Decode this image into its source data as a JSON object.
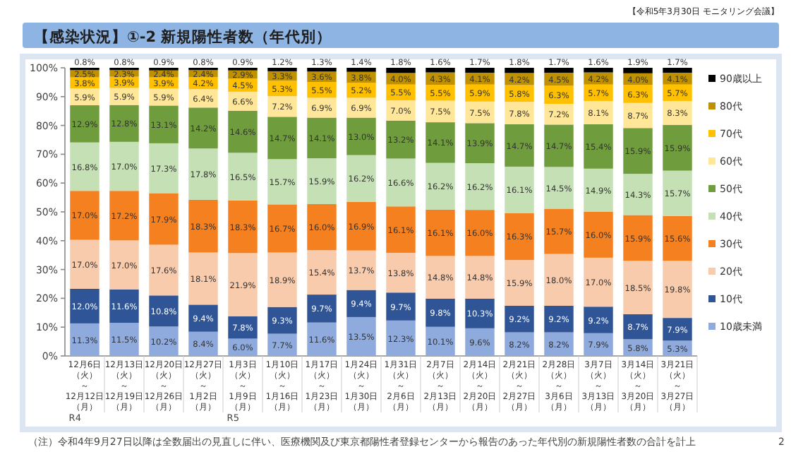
{
  "chart_data": {
    "type": "bar",
    "stacked": true,
    "title": "【感染状況】①-2 新規陽性者数（年代別）",
    "subtitle": "【令和5年3月30日 モニタリング会議】",
    "categories": [
      "12月6日（火）～12月12日（月）",
      "12月13日（火）～12月19日（月）",
      "12月20日（火）～12月26日（月）",
      "12月27日（火）～1月2日（月）",
      "1月3日（火）～1月9日（月）",
      "1月10日（火）～1月16日（月）",
      "1月17日（火）～1月23日（月）",
      "1月24日（火）～1月30日（月）",
      "1月31日（火）～2月6日（月）",
      "2月7日（火）～2月13日（月）",
      "2月14日（火）～2月20日（月）",
      "2月21日（火）～2月27日（月）",
      "2月28日（火）～3月6日（月）",
      "3月7日（火）～3月13日（月）",
      "3月14日（火）～3月20日（月）",
      "3月21日（火）～3月27日（月）"
    ],
    "ylim": [
      0,
      100
    ],
    "yticks": [
      {
        "value": 0,
        "label": "0%"
      },
      {
        "value": 10,
        "label": "10%"
      },
      {
        "value": 20,
        "label": "20%"
      },
      {
        "value": 30,
        "label": "30%"
      },
      {
        "value": 40,
        "label": "40%"
      },
      {
        "value": 50,
        "label": "50%"
      },
      {
        "value": 60,
        "label": "60%"
      },
      {
        "value": 70,
        "label": "70%"
      },
      {
        "value": 80,
        "label": "80%"
      },
      {
        "value": 90,
        "label": "90%"
      },
      {
        "value": 100,
        "label": "100%"
      }
    ],
    "legend": "right",
    "series": [
      {
        "name": "10歳未満",
        "color": "#8faadc",
        "values": [
          11.3,
          11.5,
          10.2,
          8.4,
          6.0,
          7.7,
          11.6,
          13.5,
          12.3,
          10.1,
          9.6,
          8.2,
          8.2,
          7.9,
          5.8,
          5.3
        ],
        "value_labels": [
          "11.3%",
          "11.5%",
          "10.2%",
          "8.4%",
          "6.0%",
          "7.7%",
          "11.6%",
          "13.5%",
          "12.3%",
          "10.1%",
          "9.6%",
          "8.2%",
          "8.2%",
          "7.9%",
          "5.8%",
          "5.3%"
        ]
      },
      {
        "name": "10代",
        "color": "#2f5597",
        "values": [
          12.0,
          11.6,
          10.8,
          9.4,
          7.8,
          9.3,
          9.7,
          9.4,
          9.7,
          9.8,
          10.3,
          9.2,
          9.2,
          9.2,
          8.7,
          7.9
        ],
        "value_labels": [
          "12.0%",
          "11.6%",
          "10.8%",
          "9.4%",
          "7.8%",
          "9.3%",
          "9.7%",
          "9.4%",
          "9.7%",
          "9.8%",
          "10.3%",
          "9.2%",
          "9.2%",
          "9.2%",
          "8.7%",
          "7.9%"
        ]
      },
      {
        "name": "20代",
        "color": "#f8cbad",
        "values": [
          17.0,
          17.0,
          17.6,
          18.1,
          21.9,
          18.9,
          15.4,
          13.7,
          13.8,
          14.8,
          14.8,
          15.9,
          18.0,
          17.0,
          18.5,
          19.8
        ],
        "value_labels": [
          "17.0%",
          "17.0%",
          "17.6%",
          "18.1%",
          "21.9%",
          "18.9%",
          "15.4%",
          "13.7%",
          "13.8%",
          "14.8%",
          "14.8%",
          "15.9%",
          "18.0%",
          "17.0%",
          "18.5%",
          "19.8%"
        ]
      },
      {
        "name": "30代",
        "color": "#f4801f",
        "values": [
          17.0,
          17.2,
          17.9,
          18.3,
          18.3,
          16.7,
          16.0,
          16.9,
          16.1,
          16.1,
          16.0,
          16.3,
          15.7,
          16.0,
          15.9,
          15.6
        ],
        "value_labels": [
          "17.0%",
          "17.2%",
          "17.9%",
          "18.3%",
          "18.3%",
          "16.7%",
          "16.0%",
          "16.9%",
          "16.1%",
          "16.1%",
          "16.0%",
          "16.3%",
          "15.7%",
          "16.0%",
          "15.9%",
          "15.6%"
        ]
      },
      {
        "name": "40代",
        "color": "#c5e0b4",
        "values": [
          16.8,
          17.0,
          17.3,
          17.8,
          16.5,
          15.7,
          15.9,
          16.2,
          16.6,
          16.2,
          16.2,
          16.1,
          14.5,
          14.9,
          14.3,
          15.7
        ],
        "value_labels": [
          "16.8%",
          "17.0%",
          "17.3%",
          "17.8%",
          "16.5%",
          "15.7%",
          "15.9%",
          "16.2%",
          "16.6%",
          "16.2%",
          "16.2%",
          "16.1%",
          "14.5%",
          "14.9%",
          "14.3%",
          "15.7%"
        ]
      },
      {
        "name": "50代",
        "color": "#6f9c3d",
        "values": [
          12.9,
          12.8,
          13.1,
          14.2,
          14.6,
          14.7,
          14.1,
          13.0,
          13.2,
          14.1,
          13.9,
          14.7,
          14.7,
          15.4,
          15.9,
          15.9
        ],
        "value_labels": [
          "12.9%",
          "12.8%",
          "13.1%",
          "14.2%",
          "14.6%",
          "14.7%",
          "14.1%",
          "13.0%",
          "13.2%",
          "14.1%",
          "13.9%",
          "14.7%",
          "14.7%",
          "15.4%",
          "15.9%",
          "15.9%"
        ]
      },
      {
        "name": "60代",
        "color": "#ffe699",
        "values": [
          5.9,
          5.9,
          5.9,
          6.4,
          6.6,
          7.2,
          6.9,
          6.9,
          7.0,
          7.5,
          7.5,
          7.8,
          7.2,
          8.1,
          8.7,
          8.3
        ],
        "value_labels": [
          "5.9%",
          "5.9%",
          "5.9%",
          "6.4%",
          "6.6%",
          "7.2%",
          "6.9%",
          "6.9%",
          "7.0%",
          "7.5%",
          "7.5%",
          "7.8%",
          "7.2%",
          "8.1%",
          "8.7%",
          "8.3%"
        ]
      },
      {
        "name": "70代",
        "color": "#ffc000",
        "values": [
          3.8,
          3.9,
          3.9,
          4.2,
          4.5,
          5.3,
          5.5,
          5.2,
          5.5,
          5.5,
          5.9,
          5.8,
          6.3,
          5.7,
          6.3,
          5.7
        ],
        "value_labels": [
          "3.8%",
          "3.9%",
          "3.9%",
          "4.2%",
          "4.5%",
          "5.3%",
          "5.5%",
          "5.2%",
          "5.5%",
          "5.5%",
          "5.9%",
          "5.8%",
          "6.3%",
          "5.7%",
          "6.3%",
          "5.7%"
        ]
      },
      {
        "name": "80代",
        "color": "#bf9000",
        "values": [
          2.5,
          2.3,
          2.4,
          2.4,
          2.9,
          3.3,
          3.6,
          3.8,
          4.0,
          4.3,
          4.1,
          4.2,
          4.5,
          4.2,
          4.0,
          4.1
        ],
        "value_labels": [
          "2.5%",
          "2.3%",
          "2.4%",
          "2.4%",
          "2.9%",
          "3.3%",
          "3.6%",
          "3.8%",
          "4.0%",
          "4.3%",
          "4.1%",
          "4.2%",
          "4.5%",
          "4.2%",
          "4.0%",
          "4.1%"
        ]
      },
      {
        "name": "90歳以上",
        "color": "#000000",
        "values": [
          0.8,
          0.8,
          0.9,
          0.8,
          0.9,
          1.2,
          1.3,
          1.4,
          1.8,
          1.6,
          1.7,
          1.8,
          1.7,
          1.6,
          1.9,
          1.7
        ],
        "value_labels": [
          "0.8%",
          "0.8%",
          "0.9%",
          "0.8%",
          "0.9%",
          "1.2%",
          "1.3%",
          "1.4%",
          "1.8%",
          "1.6%",
          "1.7%",
          "1.8%",
          "1.7%",
          "1.6%",
          "1.9%",
          "1.7%"
        ]
      }
    ],
    "annotations": [
      "R4",
      "R5",
      "（注）令和4年9月27日以降は全数届出の見直しに伴い、医療機関及び東京都陽性者登録センターから報告のあった年代別の新規陽性者数の合計を計上",
      "2"
    ]
  }
}
